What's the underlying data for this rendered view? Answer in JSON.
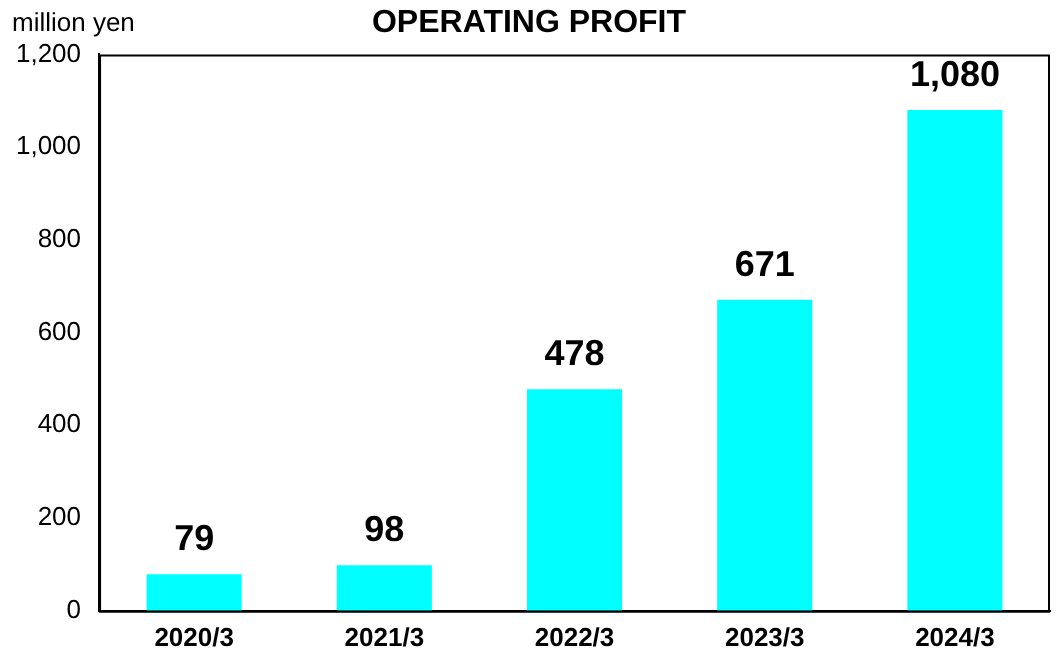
{
  "chart_data": {
    "type": "bar",
    "title": "OPERATING PROFIT",
    "ylabel": "million yen",
    "categories": [
      "2020/3",
      "2021/3",
      "2022/3",
      "2023/3",
      "2024/3"
    ],
    "values": [
      79,
      98,
      478,
      671,
      1080
    ],
    "value_labels": [
      "79",
      "98",
      "478",
      "671",
      "1,080"
    ],
    "color": "#00ffff",
    "ylim": [
      0,
      1200
    ],
    "yticks": [
      0,
      200,
      400,
      600,
      800,
      {
        "value": 1000,
        "label": "1,000"
      },
      {
        "value": 1200,
        "label": "1,200"
      }
    ],
    "grid": false,
    "legend": false
  }
}
